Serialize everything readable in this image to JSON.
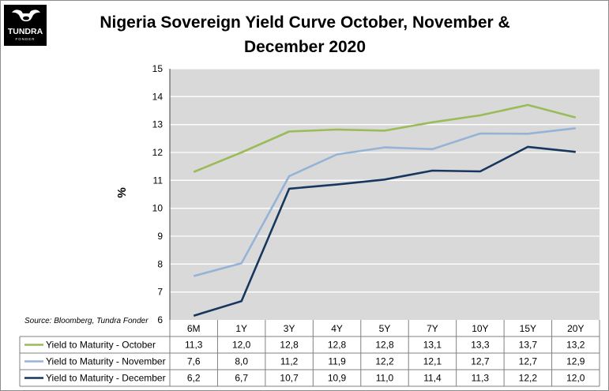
{
  "brand": {
    "name": "TUNDRA",
    "sub": "FONDER",
    "color": "#000000"
  },
  "header": {
    "title_line1": "Nigeria Sovereign Yield Curve October, November &",
    "title_line2": "December 2020"
  },
  "source": "Source: Bloomberg, Tundra Fonder",
  "colors": {
    "plot_bg": "#d9d9d9",
    "grid": "#ffffff",
    "october": "#9bbb59",
    "november": "#95b3d7",
    "december": "#17375e"
  },
  "chart_data": {
    "type": "line",
    "title": "Nigeria Sovereign Yield Curve October, November & December 2020",
    "xlabel": "",
    "ylabel": "%",
    "ylim": [
      6,
      15
    ],
    "yticks": [
      6,
      7,
      8,
      9,
      10,
      11,
      12,
      13,
      14,
      15
    ],
    "categories": [
      "6M",
      "1Y",
      "3Y",
      "4Y",
      "5Y",
      "7Y",
      "10Y",
      "15Y",
      "20Y"
    ],
    "series": [
      {
        "name": "Yield to Maturity - October",
        "values": [
          11.3,
          12.0,
          12.75,
          12.82,
          12.78,
          13.08,
          13.33,
          13.7,
          13.25
        ],
        "labels": [
          "11,3",
          "12,0",
          "12,8",
          "12,8",
          "12,8",
          "13,1",
          "13,3",
          "13,7",
          "13,2"
        ]
      },
      {
        "name": "Yield to Maturity - November",
        "values": [
          7.57,
          8.03,
          11.15,
          11.93,
          12.18,
          12.12,
          12.68,
          12.67,
          12.87
        ],
        "labels": [
          "7,6",
          "8,0",
          "11,2",
          "11,9",
          "12,2",
          "12,1",
          "12,7",
          "12,7",
          "12,9"
        ]
      },
      {
        "name": "Yield to Maturity - December",
        "values": [
          6.15,
          6.67,
          10.7,
          10.85,
          11.03,
          11.35,
          11.32,
          12.2,
          12.02
        ],
        "labels": [
          "6,2",
          "6,7",
          "10,7",
          "10,9",
          "11,0",
          "11,4",
          "11,3",
          "12,2",
          "12,0"
        ]
      }
    ],
    "grid": true,
    "legend": "table-below"
  }
}
